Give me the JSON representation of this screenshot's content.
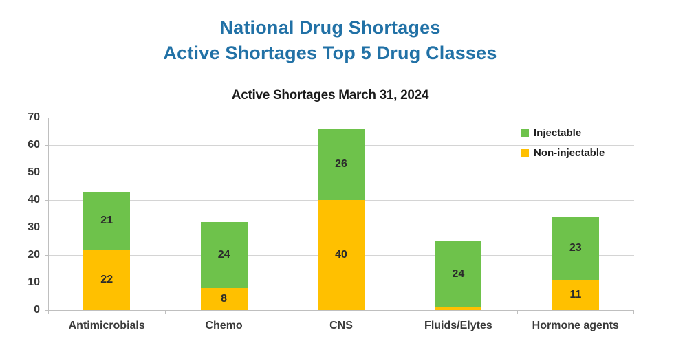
{
  "page": {
    "title_line1": "National Drug Shortages",
    "title_line2": "Active Shortages Top 5 Drug Classes"
  },
  "colors": {
    "title": "#2171A6",
    "injectable": "#6EC24B",
    "non_injectable": "#FFC000",
    "gridline": "#D4D4D4",
    "axis_line": "#BFBFBF"
  },
  "chart_data": {
    "type": "bar",
    "stacked": true,
    "title": "Active Shortages March 31, 2024",
    "categories": [
      "Antimicrobials",
      "Chemo",
      "CNS",
      "Fluids/Elytes",
      "Hormone agents"
    ],
    "series": [
      {
        "name": "Non-injectable",
        "color": "#FFC000",
        "values": [
          22,
          8,
          40,
          1,
          11
        ]
      },
      {
        "name": "Injectable",
        "color": "#6EC24B",
        "values": [
          21,
          24,
          26,
          24,
          23
        ]
      }
    ],
    "totals": [
      43,
      32,
      66,
      25,
      34
    ],
    "legend_items": [
      {
        "label": "Injectable",
        "color": "#6EC24B"
      },
      {
        "label": "Non-injectable",
        "color": "#FFC000"
      }
    ],
    "legend_position": "top-right",
    "xlabel": "",
    "ylabel": "",
    "ylim": [
      0,
      70
    ],
    "yticks": [
      0,
      10,
      20,
      30,
      40,
      50,
      60,
      70
    ],
    "grid": true,
    "data_labels": true
  }
}
